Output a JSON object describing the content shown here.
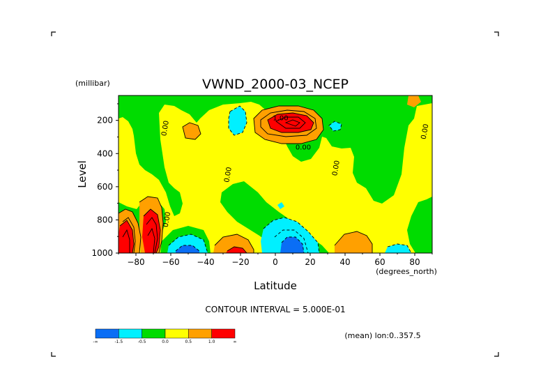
{
  "chart_data": {
    "type": "heatmap",
    "title": "VWND_2000-03_NCEP",
    "xlabel": "Latitude",
    "ylabel": "Level",
    "x_units": "(degrees_north)",
    "y_units": "(millibar)",
    "xlim": [
      -90,
      90
    ],
    "ylim": [
      1000,
      50
    ],
    "y_inverted": true,
    "x_ticks": [
      -80,
      -60,
      -40,
      -20,
      0,
      20,
      40,
      60,
      80
    ],
    "y_ticks": [
      200,
      400,
      600,
      800,
      1000
    ],
    "contour_interval_text": "CONTOUR INTERVAL = 5.000E-01",
    "mean_text": "(mean) lon:0..357.5",
    "contour_labels": [
      {
        "text": "1.00",
        "lat": 3,
        "lev": 200
      },
      {
        "text": "0.00",
        "lat": 16,
        "lev": 375
      },
      {
        "text": "0.00",
        "lat": -62,
        "lev": 250
      },
      {
        "text": "0.00",
        "lat": -26,
        "lev": 530
      },
      {
        "text": "0.00",
        "lat": 36,
        "lev": 490
      },
      {
        "text": "0.00",
        "lat": -61,
        "lev": 800
      },
      {
        "text": "0.00",
        "lat": 87,
        "lev": 270
      }
    ],
    "colorbar": {
      "colors": [
        "#0a6ef5",
        "#00f0ff",
        "#00dc00",
        "#ffff00",
        "#ffa000",
        "#ff0000"
      ],
      "tick_labels": [
        "-∞",
        "-1.5",
        "-0.5",
        "0.0",
        "0.5",
        "1.0",
        "∞"
      ]
    }
  }
}
